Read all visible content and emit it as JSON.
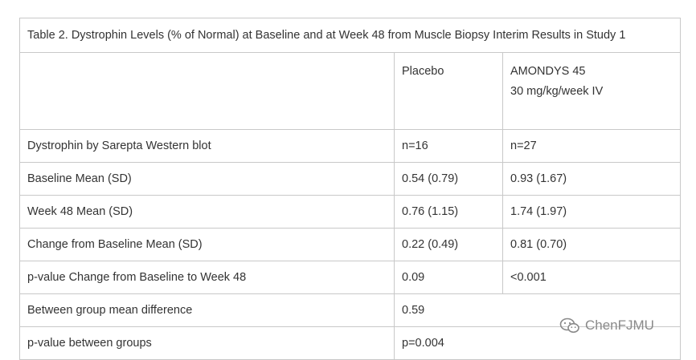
{
  "table": {
    "caption": "Table 2. Dystrophin Levels (% of Normal) at Baseline and at Week 48 from Muscle Biopsy Interim Results in Study 1",
    "header": {
      "col1": "",
      "col2": "Placebo",
      "col3_line1": "AMONDYS 45",
      "col3_line2": "30 mg/kg/week IV"
    },
    "rows": [
      {
        "label": "Dystrophin by Sarepta Western blot",
        "placebo": "n=16",
        "amondys": "n=27"
      },
      {
        "label": "Baseline Mean (SD)",
        "placebo": "0.54 (0.79)",
        "amondys": "0.93 (1.67)"
      },
      {
        "label": "Week 48 Mean (SD)",
        "placebo": "0.76 (1.15)",
        "amondys": "1.74 (1.97)"
      },
      {
        "label": "Change from Baseline Mean (SD)",
        "placebo": "0.22 (0.49)",
        "amondys": "0.81 (0.70)"
      },
      {
        "label": "p-value Change from Baseline to Week 48",
        "placebo": "0.09",
        "amondys": "<0.001"
      }
    ],
    "merged_rows": [
      {
        "label": "Between group mean difference",
        "value": "0.59"
      },
      {
        "label": "p-value between groups",
        "value": "p=0.004"
      }
    ]
  },
  "watermark": {
    "text": "ChenFJMU",
    "icon": "wechat-icon"
  }
}
